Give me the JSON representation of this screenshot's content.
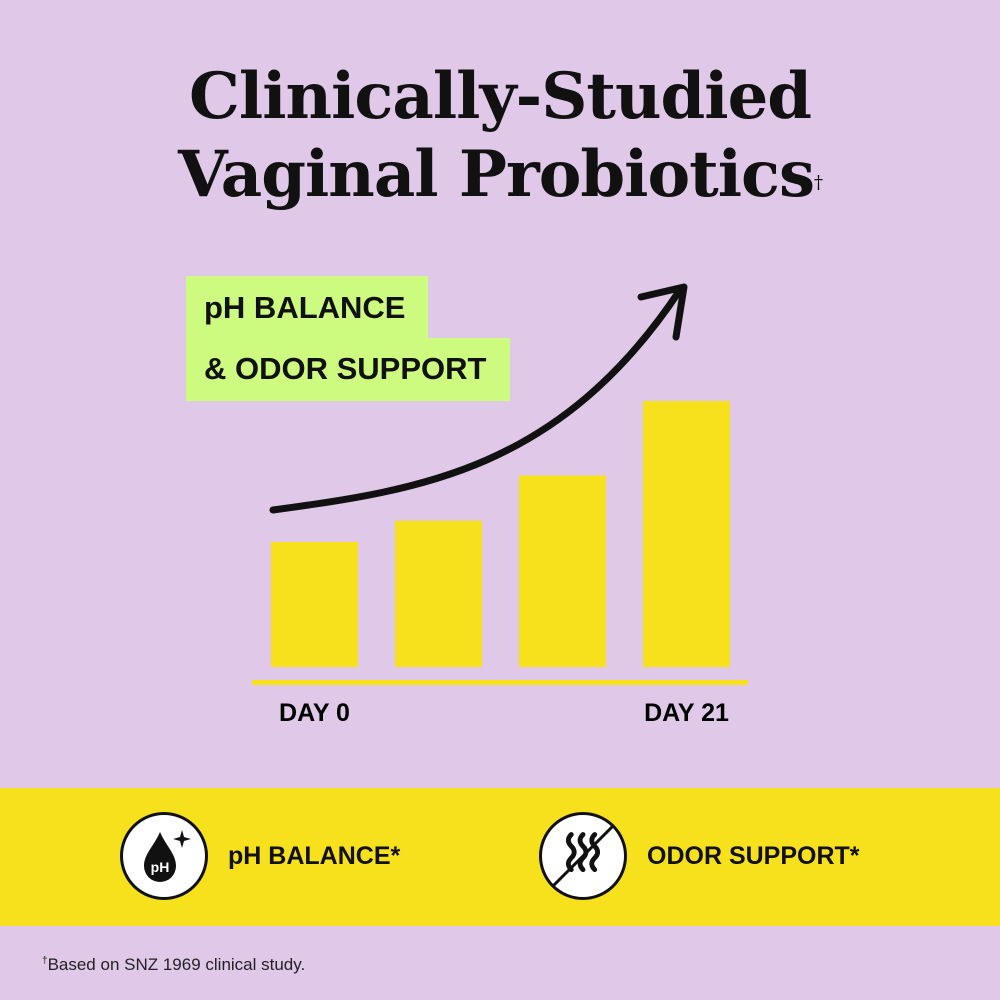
{
  "title": {
    "line1": "Clinically-Studied",
    "line2": "Vaginal Probiotics",
    "mark": "†"
  },
  "tag": {
    "line1": "pH BALANCE",
    "line2": "& ODOR SUPPORT"
  },
  "chart_data": {
    "type": "bar",
    "categories": [
      "DAY 0",
      "",
      "",
      "DAY 21"
    ],
    "values": [
      47,
      55,
      72,
      100
    ],
    "title": "",
    "xlabel": "",
    "ylabel": "",
    "ylim": [
      0,
      100
    ],
    "grid": false,
    "trend_arrow": "upward",
    "bar_color": "#f7e11d",
    "baseline_color": "#f7e11d"
  },
  "features": [
    {
      "label": "pH BALANCE*",
      "icon": "ph-drop-icon",
      "icon_text": "pH"
    },
    {
      "label": "ODOR SUPPORT*",
      "icon": "no-odor-icon"
    }
  ],
  "footnote": {
    "mark": "†",
    "text": "Based on SNZ 1969 clinical study."
  },
  "colors": {
    "background": "#dfc8e8",
    "yellow": "#f7e11d",
    "green": "#ccfb7f"
  }
}
